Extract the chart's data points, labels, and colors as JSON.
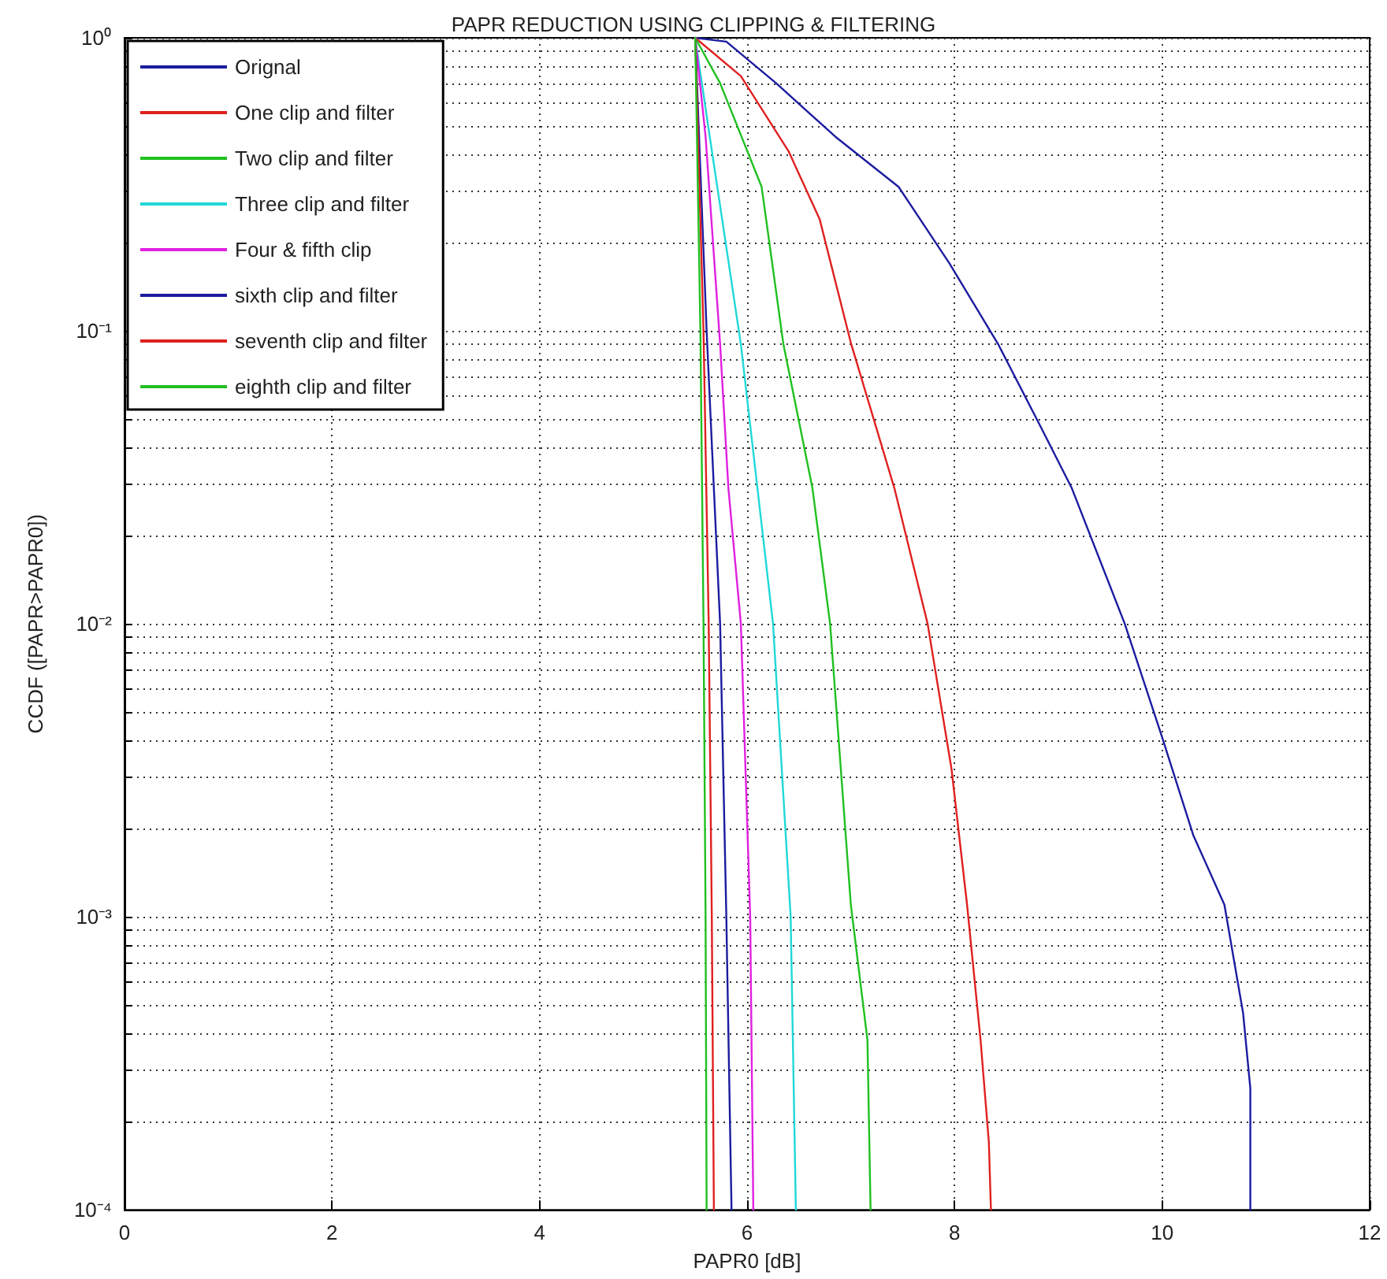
{
  "chart_data": {
    "type": "line",
    "title": "PAPR REDUCTION USING CLIPPING & FILTERING",
    "xlabel": "PAPR0 [dB]",
    "ylabel": "CCDF ([PAPR>PAPR0])",
    "log": "y",
    "grid": true,
    "legend": "top left",
    "xlim": [
      0,
      12
    ],
    "xticks": [
      0,
      2,
      4,
      6,
      8,
      10,
      12
    ],
    "ylim": [
      0.0001,
      1
    ],
    "yticks": [
      {
        "value": 0.0001,
        "label": "10⁻⁴"
      },
      {
        "value": 0.0002,
        "label": null
      },
      {
        "value": 0.0003,
        "label": null
      },
      {
        "value": 0.0004,
        "label": null
      },
      {
        "value": 0.0005,
        "label": null
      },
      {
        "value": 0.0006,
        "label": null
      },
      {
        "value": 0.0007,
        "label": null
      },
      {
        "value": 0.0008,
        "label": null
      },
      {
        "value": 0.0009,
        "label": null
      },
      {
        "value": 0.001,
        "label": "10⁻³"
      },
      {
        "value": 0.002,
        "label": null
      },
      {
        "value": 0.003,
        "label": null
      },
      {
        "value": 0.004,
        "label": null
      },
      {
        "value": 0.005,
        "label": null
      },
      {
        "value": 0.006,
        "label": null
      },
      {
        "value": 0.007,
        "label": null
      },
      {
        "value": 0.008,
        "label": null
      },
      {
        "value": 0.009,
        "label": null
      },
      {
        "value": 0.01,
        "label": "10⁻²"
      },
      {
        "value": 0.02,
        "label": null
      },
      {
        "value": 0.03,
        "label": null
      },
      {
        "value": 0.04,
        "label": null
      },
      {
        "value": 0.05,
        "label": null
      },
      {
        "value": 0.06,
        "label": null
      },
      {
        "value": 0.07,
        "label": null
      },
      {
        "value": 0.08,
        "label": null
      },
      {
        "value": 0.09,
        "label": null
      },
      {
        "value": 0.1,
        "label": "10⁻¹"
      },
      {
        "value": 0.2,
        "label": null
      },
      {
        "value": 0.3,
        "label": null
      },
      {
        "value": 0.4,
        "label": null
      },
      {
        "value": 0.5,
        "label": null
      },
      {
        "value": 0.6,
        "label": null
      },
      {
        "value": 0.7,
        "label": null
      },
      {
        "value": 0.8,
        "label": null
      },
      {
        "value": 0.9,
        "label": null
      },
      {
        "value": 1,
        "label": "10⁰"
      }
    ],
    "series": [
      {
        "name": "Orignal",
        "color": "#1c1ca0",
        "x": [
          5.5,
          5.8,
          6.28,
          6.85,
          7.46,
          7.95,
          8.42,
          8.83,
          9.13,
          9.64,
          10.0,
          10.3,
          10.6,
          10.78,
          10.85,
          10.85
        ],
        "values": [
          1,
          0.97,
          0.7,
          0.46,
          0.31,
          0.17,
          0.09,
          0.047,
          0.029,
          0.01,
          0.0041,
          0.0019,
          0.0011,
          0.00047,
          0.00026,
          0.0001
        ]
      },
      {
        "name": "One clip and filter",
        "color": "#e02020",
        "x": [
          5.5,
          5.94,
          6.4,
          6.7,
          7.0,
          7.42,
          7.74,
          7.97,
          8.12,
          8.25,
          8.33,
          8.35
        ],
        "values": [
          1,
          0.74,
          0.41,
          0.24,
          0.091,
          0.029,
          0.01,
          0.0032,
          0.0011,
          0.00038,
          0.00017,
          0.0001
        ]
      },
      {
        "name": "Two clip and filter",
        "color": "#20c020",
        "x": [
          5.5,
          5.74,
          6.14,
          6.35,
          6.63,
          6.8,
          7.0,
          7.16,
          7.19
        ],
        "values": [
          1,
          0.7,
          0.31,
          0.09,
          0.029,
          0.01,
          0.0011,
          0.00038,
          0.0001
        ]
      },
      {
        "name": "Three clip and filter",
        "color": "#20d8d8",
        "x": [
          5.5,
          5.64,
          5.94,
          6.1,
          6.25,
          6.42,
          6.47
        ],
        "values": [
          1,
          0.46,
          0.09,
          0.029,
          0.01,
          0.001,
          0.0001
        ]
      },
      {
        "name": "Four & fifth clip",
        "color": "#e020e0",
        "x": [
          5.5,
          5.6,
          5.74,
          5.82,
          5.94,
          6.03,
          6.06
        ],
        "values": [
          1,
          0.46,
          0.09,
          0.029,
          0.01,
          0.001,
          0.0001
        ]
      },
      {
        "name": "sixth clip and filter",
        "color": "#1c1ca0",
        "x": [
          5.5,
          5.61,
          5.74,
          5.8,
          5.85
        ],
        "values": [
          1,
          0.1,
          0.01,
          0.001,
          0.0001
        ]
      },
      {
        "name": "seventh clip and filter",
        "color": "#e02020",
        "x": [
          5.5,
          5.58,
          5.63,
          5.66,
          5.68
        ],
        "values": [
          1,
          0.1,
          0.01,
          0.001,
          0.0001
        ]
      },
      {
        "name": "eighth clip and filter",
        "color": "#20c020",
        "x": [
          5.5,
          5.55,
          5.58,
          5.6,
          5.61
        ],
        "values": [
          1,
          0.1,
          0.01,
          0.001,
          0.0001
        ]
      }
    ]
  }
}
